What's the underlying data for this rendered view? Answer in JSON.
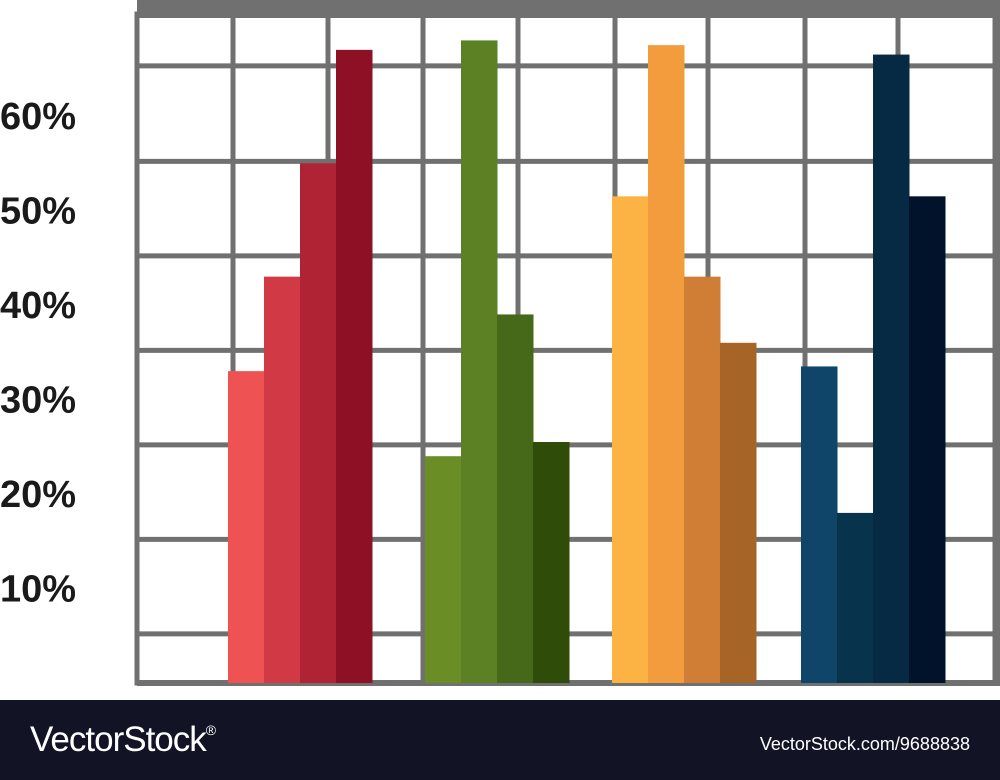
{
  "chart_data": {
    "type": "bar",
    "title": "",
    "xlabel": "",
    "ylabel": "",
    "y_tick_labels": [
      "10%",
      "20%",
      "30%",
      "40%",
      "50%",
      "60%"
    ],
    "y_ticks": [
      10,
      20,
      30,
      40,
      50,
      60
    ],
    "ylim": [
      0,
      71
    ],
    "grid": true,
    "legend": "none",
    "groups": [
      {
        "values": [
          33,
          43,
          55,
          67
        ],
        "colors": [
          "#ee5253",
          "#d13a45",
          "#b02334",
          "#8d1025"
        ]
      },
      {
        "values": [
          24,
          68,
          39,
          25.5
        ],
        "colors": [
          "#6a8e25",
          "#5c8125",
          "#456919",
          "#2f4c08"
        ]
      },
      {
        "values": [
          51.5,
          67.5,
          43,
          36
        ],
        "colors": [
          "#fcb344",
          "#f39c3e",
          "#d07e36",
          "#a76427"
        ]
      },
      {
        "values": [
          33.5,
          18,
          66.5,
          51.5
        ],
        "colors": [
          "#0e4568",
          "#07334d",
          "#062a44",
          "#01132a"
        ]
      }
    ]
  },
  "footer": {
    "brand": "VectorStock",
    "brand_mark": "®",
    "image_id": "VectorStock.com/9688838"
  },
  "colors": {
    "grid": "#707070",
    "footer_bg": "#121426"
  }
}
